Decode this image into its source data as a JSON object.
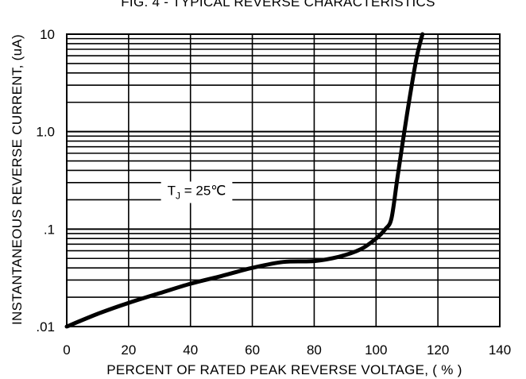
{
  "chart_data": {
    "type": "line",
    "title": "FIG. 4 - TYPICAL REVERSE CHARACTERISTICS",
    "xlabel": "PERCENT OF RATED PEAK REVERSE VOLTAGE, ( % )",
    "ylabel": "INSTANTANEOUS REVERSE CURRENT, (uA)",
    "xlim": [
      0,
      140
    ],
    "ylim": [
      0.01,
      10
    ],
    "y_scale": "log",
    "grid": true,
    "x_ticks": [
      0,
      20,
      40,
      60,
      80,
      100,
      120,
      140
    ],
    "x_tick_labels": [
      "0",
      "20",
      "40",
      "60",
      "80",
      "100",
      "120",
      "140"
    ],
    "y_ticks": [
      0.01,
      0.1,
      1,
      10
    ],
    "y_tick_labels": [
      ".01",
      ".1",
      "1.0",
      "10"
    ],
    "annotation": {
      "base": "T",
      "sub": "J",
      "rest": " = 25℃",
      "x": 42,
      "y": 0.25
    },
    "series": [
      {
        "x": [
          0,
          10,
          20,
          30,
          40,
          50,
          60,
          70,
          80,
          88,
          95,
          100,
          103,
          105,
          107,
          110,
          113,
          115
        ],
        "y": [
          0.01,
          0.0135,
          0.0175,
          0.022,
          0.0275,
          0.033,
          0.04,
          0.046,
          0.047,
          0.052,
          0.062,
          0.08,
          0.1,
          0.13,
          0.35,
          1.5,
          5.5,
          10
        ]
      }
    ]
  }
}
